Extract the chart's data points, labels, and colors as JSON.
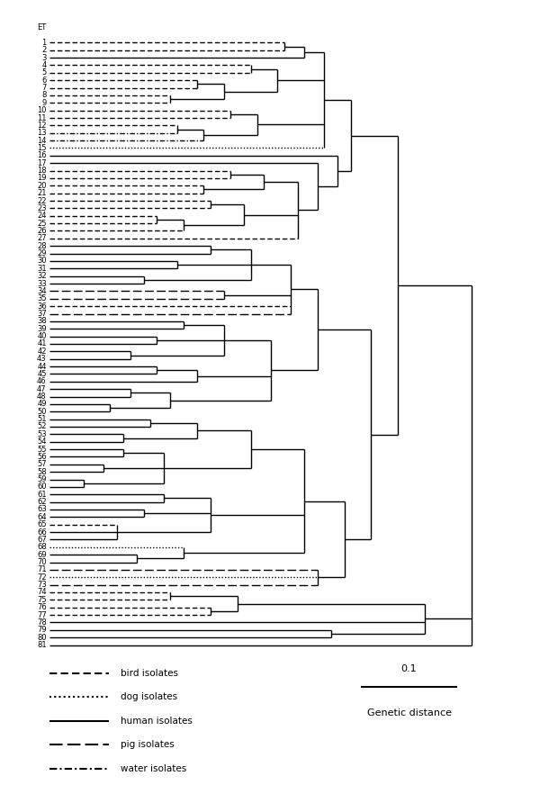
{
  "host_types": {
    "1": "bird",
    "2": "bird",
    "3": "human",
    "4": "bird",
    "5": "bird",
    "6": "bird",
    "7": "bird",
    "8": "bird",
    "9": "bird",
    "10": "bird",
    "11": "bird",
    "12": "bird",
    "13": "water",
    "14": "water",
    "15": "dog",
    "16": "human",
    "17": "human",
    "18": "bird",
    "19": "bird",
    "20": "bird",
    "21": "bird",
    "22": "bird",
    "23": "bird",
    "24": "bird",
    "25": "bird",
    "26": "bird",
    "27": "bird",
    "28": "human",
    "29": "human",
    "30": "human",
    "31": "human",
    "32": "human",
    "33": "human",
    "34": "pig",
    "35": "pig",
    "36": "bird",
    "37": "pig",
    "38": "human",
    "39": "human",
    "40": "human",
    "41": "human",
    "42": "human",
    "43": "human",
    "44": "human",
    "45": "human",
    "46": "human",
    "47": "human",
    "48": "human",
    "49": "human",
    "50": "human",
    "51": "human",
    "52": "human",
    "53": "human",
    "54": "human",
    "55": "human",
    "56": "human",
    "57": "human",
    "58": "human",
    "59": "human",
    "60": "human",
    "61": "human",
    "62": "human",
    "63": "human",
    "64": "human",
    "65": "bird",
    "66": "human",
    "67": "human",
    "68": "dog",
    "69": "human",
    "70": "human",
    "71": "pig",
    "72": "dog",
    "73": "pig",
    "74": "bird",
    "75": "bird",
    "76": "bird",
    "77": "bird",
    "78": "human",
    "79": "human",
    "80": "human",
    "81": "human"
  },
  "scale_bar_label": "Genetic distance",
  "scale_bar_value": 0.1,
  "background_color": "#ffffff",
  "fontsize_et": 6.0,
  "fontsize_legend": 7.5,
  "fontsize_scale": 8.0
}
